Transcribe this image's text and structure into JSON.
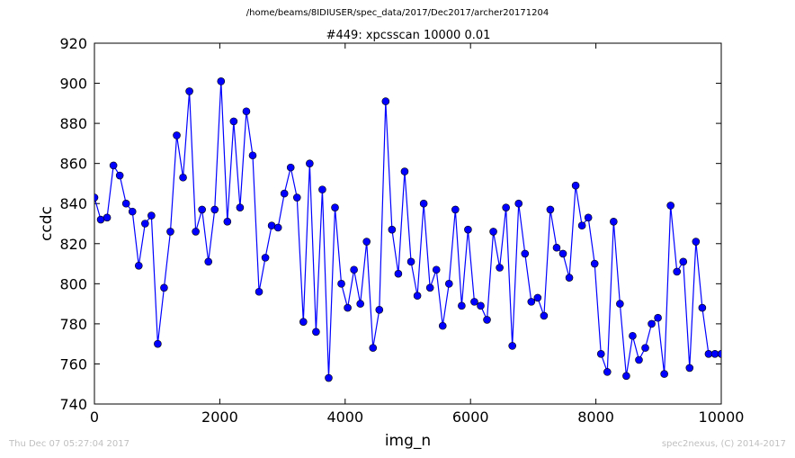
{
  "header": {
    "suptitle": "/home/beams/8IDIUSER/spec_data/2017/Dec2017/archer20171204"
  },
  "footer": {
    "timestamp": "Thu Dec 07 05:27:04 2017",
    "credit": "spec2nexus, (C) 2014-2017"
  },
  "chart_data": {
    "type": "line",
    "title": "#449: xpcsscan 10000 0.01",
    "xlabel": "img_n",
    "ylabel": "ccdc",
    "xlim": [
      0,
      10000
    ],
    "ylim": [
      740,
      920
    ],
    "xticks": [
      0,
      2000,
      4000,
      6000,
      8000,
      10000
    ],
    "yticks": [
      740,
      760,
      780,
      800,
      820,
      840,
      860,
      880,
      900,
      920
    ],
    "grid": false,
    "series": [
      {
        "color": "#0000ff",
        "marker": "circle",
        "x": [
          0,
          101,
          202,
          303,
          404,
          505,
          606,
          707,
          808,
          909,
          1010,
          1111,
          1212,
          1313,
          1414,
          1515,
          1616,
          1717,
          1818,
          1919,
          2020,
          2121,
          2222,
          2323,
          2424,
          2525,
          2626,
          2727,
          2828,
          2929,
          3030,
          3131,
          3232,
          3333,
          3434,
          3535,
          3636,
          3737,
          3838,
          3939,
          4040,
          4141,
          4242,
          4343,
          4444,
          4545,
          4646,
          4747,
          4848,
          4949,
          5051,
          5152,
          5253,
          5354,
          5455,
          5556,
          5657,
          5758,
          5859,
          5960,
          6061,
          6162,
          6263,
          6364,
          6465,
          6566,
          6667,
          6768,
          6869,
          6970,
          7071,
          7172,
          7273,
          7374,
          7475,
          7576,
          7677,
          7778,
          7879,
          7980,
          8081,
          8182,
          8283,
          8384,
          8485,
          8586,
          8687,
          8788,
          8889,
          8990,
          9091,
          9192,
          9293,
          9394,
          9495,
          9596,
          9697,
          9798,
          9899,
          10000
        ],
        "y": [
          843,
          832,
          833,
          859,
          854,
          840,
          836,
          809,
          830,
          834,
          770,
          798,
          826,
          874,
          853,
          896,
          826,
          837,
          811,
          837,
          901,
          831,
          881,
          838,
          886,
          864,
          796,
          813,
          829,
          828,
          845,
          858,
          843,
          781,
          860,
          776,
          847,
          753,
          838,
          800,
          788,
          807,
          790,
          821,
          768,
          787,
          891,
          827,
          805,
          856,
          811,
          794,
          840,
          798,
          807,
          779,
          800,
          837,
          789,
          827,
          791,
          789,
          782,
          826,
          808,
          838,
          769,
          840,
          815,
          791,
          793,
          784,
          837,
          818,
          815,
          803,
          849,
          829,
          833,
          810,
          765,
          756,
          831,
          790,
          754,
          774,
          762,
          768,
          780,
          783,
          755,
          839,
          806,
          811,
          758,
          821,
          788,
          765,
          765,
          765
        ]
      }
    ]
  }
}
